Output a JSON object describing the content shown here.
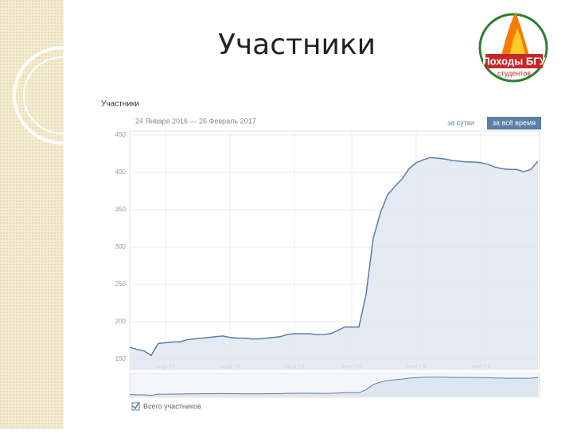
{
  "slide": {
    "title": "Участники"
  },
  "logo": {
    "text": "Походы БГУ",
    "subtext": "студентов"
  },
  "chart_data": {
    "type": "line",
    "title": "Участники",
    "subtitle": "24 Января 2016 — 26 Февраль 2017",
    "buttons": [
      "за сутки",
      "за всё время"
    ],
    "categories": [
      null,
      null,
      null,
      null,
      null,
      "мар'16",
      null,
      null,
      null,
      null,
      null,
      null,
      null,
      null,
      "май'16",
      null,
      null,
      null,
      null,
      null,
      null,
      null,
      null,
      "июл'16",
      null,
      null,
      null,
      null,
      null,
      null,
      null,
      "сен'16",
      null,
      null,
      null,
      null,
      null,
      null,
      null,
      null,
      "ноя'16",
      null,
      null,
      null,
      null,
      null,
      null,
      null,
      null,
      "янв'17",
      null,
      null,
      null,
      null,
      null,
      null,
      null,
      null
    ],
    "series": [
      {
        "name": "Всего участников",
        "color": "#5b7fa6",
        "values": [
          166,
          163,
          161,
          155,
          171,
          172,
          173,
          173,
          176,
          177,
          178,
          179,
          180,
          181,
          179,
          178,
          178,
          177,
          177,
          178,
          179,
          180,
          183,
          184,
          184,
          184,
          183,
          183,
          184,
          188,
          193,
          193,
          193,
          237,
          312,
          346,
          370,
          381,
          391,
          405,
          413,
          417,
          420,
          419,
          418,
          416,
          415,
          414,
          414,
          413,
          411,
          407,
          405,
          404,
          404,
          401,
          404,
          415
        ]
      }
    ],
    "ylim": [
      150,
      450
    ],
    "yticks": [
      150,
      200,
      250,
      300,
      350,
      400,
      450
    ],
    "grid": true
  }
}
